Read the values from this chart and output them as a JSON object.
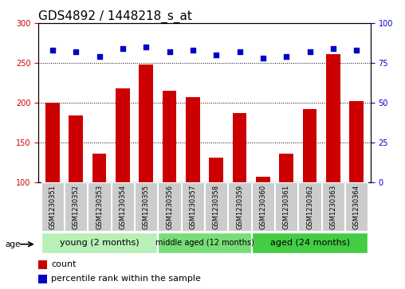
{
  "title": "GDS4892 / 1448218_s_at",
  "samples": [
    "GSM1230351",
    "GSM1230352",
    "GSM1230353",
    "GSM1230354",
    "GSM1230355",
    "GSM1230356",
    "GSM1230357",
    "GSM1230358",
    "GSM1230359",
    "GSM1230360",
    "GSM1230361",
    "GSM1230362",
    "GSM1230363",
    "GSM1230364"
  ],
  "counts": [
    200,
    184,
    136,
    218,
    248,
    215,
    207,
    131,
    187,
    107,
    136,
    192,
    261,
    202
  ],
  "percentiles": [
    83,
    82,
    79,
    84,
    85,
    82,
    83,
    80,
    82,
    78,
    79,
    82,
    84,
    83
  ],
  "bar_color": "#cc0000",
  "dot_color": "#0000cc",
  "ylim_left": [
    100,
    300
  ],
  "ylim_right": [
    0,
    100
  ],
  "yticks_left": [
    100,
    150,
    200,
    250,
    300
  ],
  "yticks_right": [
    0,
    25,
    50,
    75,
    100
  ],
  "groups": [
    {
      "label": "young (2 months)",
      "start": 0,
      "end": 5
    },
    {
      "label": "middle aged (12 months)",
      "start": 5,
      "end": 9
    },
    {
      "label": "aged (24 months)",
      "start": 9,
      "end": 14
    }
  ],
  "group_colors": [
    "#b8f0b8",
    "#77dd77",
    "#44cc44"
  ],
  "group_text_sizes": [
    8,
    7,
    8
  ],
  "legend_count_label": "count",
  "legend_pct_label": "percentile rank within the sample",
  "age_label": "age",
  "title_fontsize": 11,
  "tick_fontsize": 7,
  "sample_fontsize": 6
}
